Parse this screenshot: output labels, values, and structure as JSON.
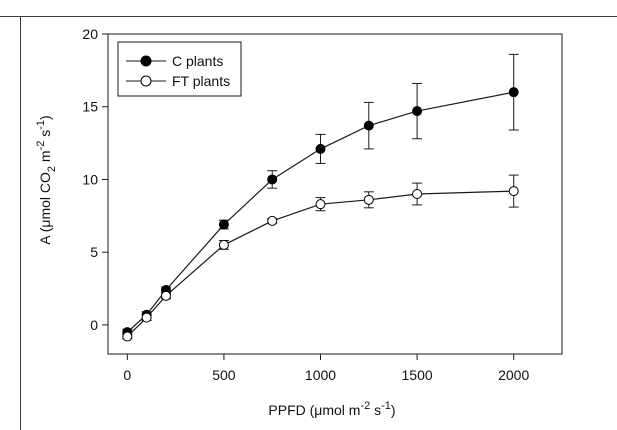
{
  "chart_data": {
    "type": "line",
    "x": [
      0,
      100,
      200,
      500,
      750,
      1000,
      1250,
      1500,
      2000
    ],
    "series": [
      {
        "name": "C plants",
        "marker": "filled",
        "values": [
          -0.5,
          0.7,
          2.4,
          6.9,
          10.0,
          12.1,
          13.7,
          14.7,
          16.0
        ],
        "errors": [
          0.2,
          0.2,
          0.2,
          0.3,
          0.6,
          1.0,
          1.6,
          1.9,
          2.6
        ]
      },
      {
        "name": "FT plants",
        "marker": "open",
        "values": [
          -0.8,
          0.5,
          2.0,
          5.5,
          7.15,
          8.3,
          8.6,
          9.0,
          9.2
        ],
        "errors": [
          0.15,
          0.2,
          0.2,
          0.3,
          0.15,
          0.45,
          0.55,
          0.75,
          1.1
        ]
      }
    ],
    "xlim": [
      -100,
      2250
    ],
    "ylim": [
      -2,
      20
    ],
    "xticks": [
      0,
      500,
      1000,
      1500,
      2000
    ],
    "yticks": [
      0,
      5,
      10,
      15,
      20
    ],
    "xlabel": {
      "prefix": "PPFD (μmol m",
      "sup1": "-2",
      "mid": " s",
      "sup2": "-1",
      "suffix": ")"
    },
    "ylabel": {
      "prefix": "A (μmol CO",
      "sub": "2",
      "mid1": " m",
      "sup1": "-2",
      "mid2": " s",
      "sup2": "-1",
      "suffix": ")"
    },
    "legend_position": "top-left",
    "grid": false,
    "colors": {
      "line": "#1a1a1a",
      "marker_fill": "#000000",
      "open_fill": "#ffffff"
    }
  }
}
